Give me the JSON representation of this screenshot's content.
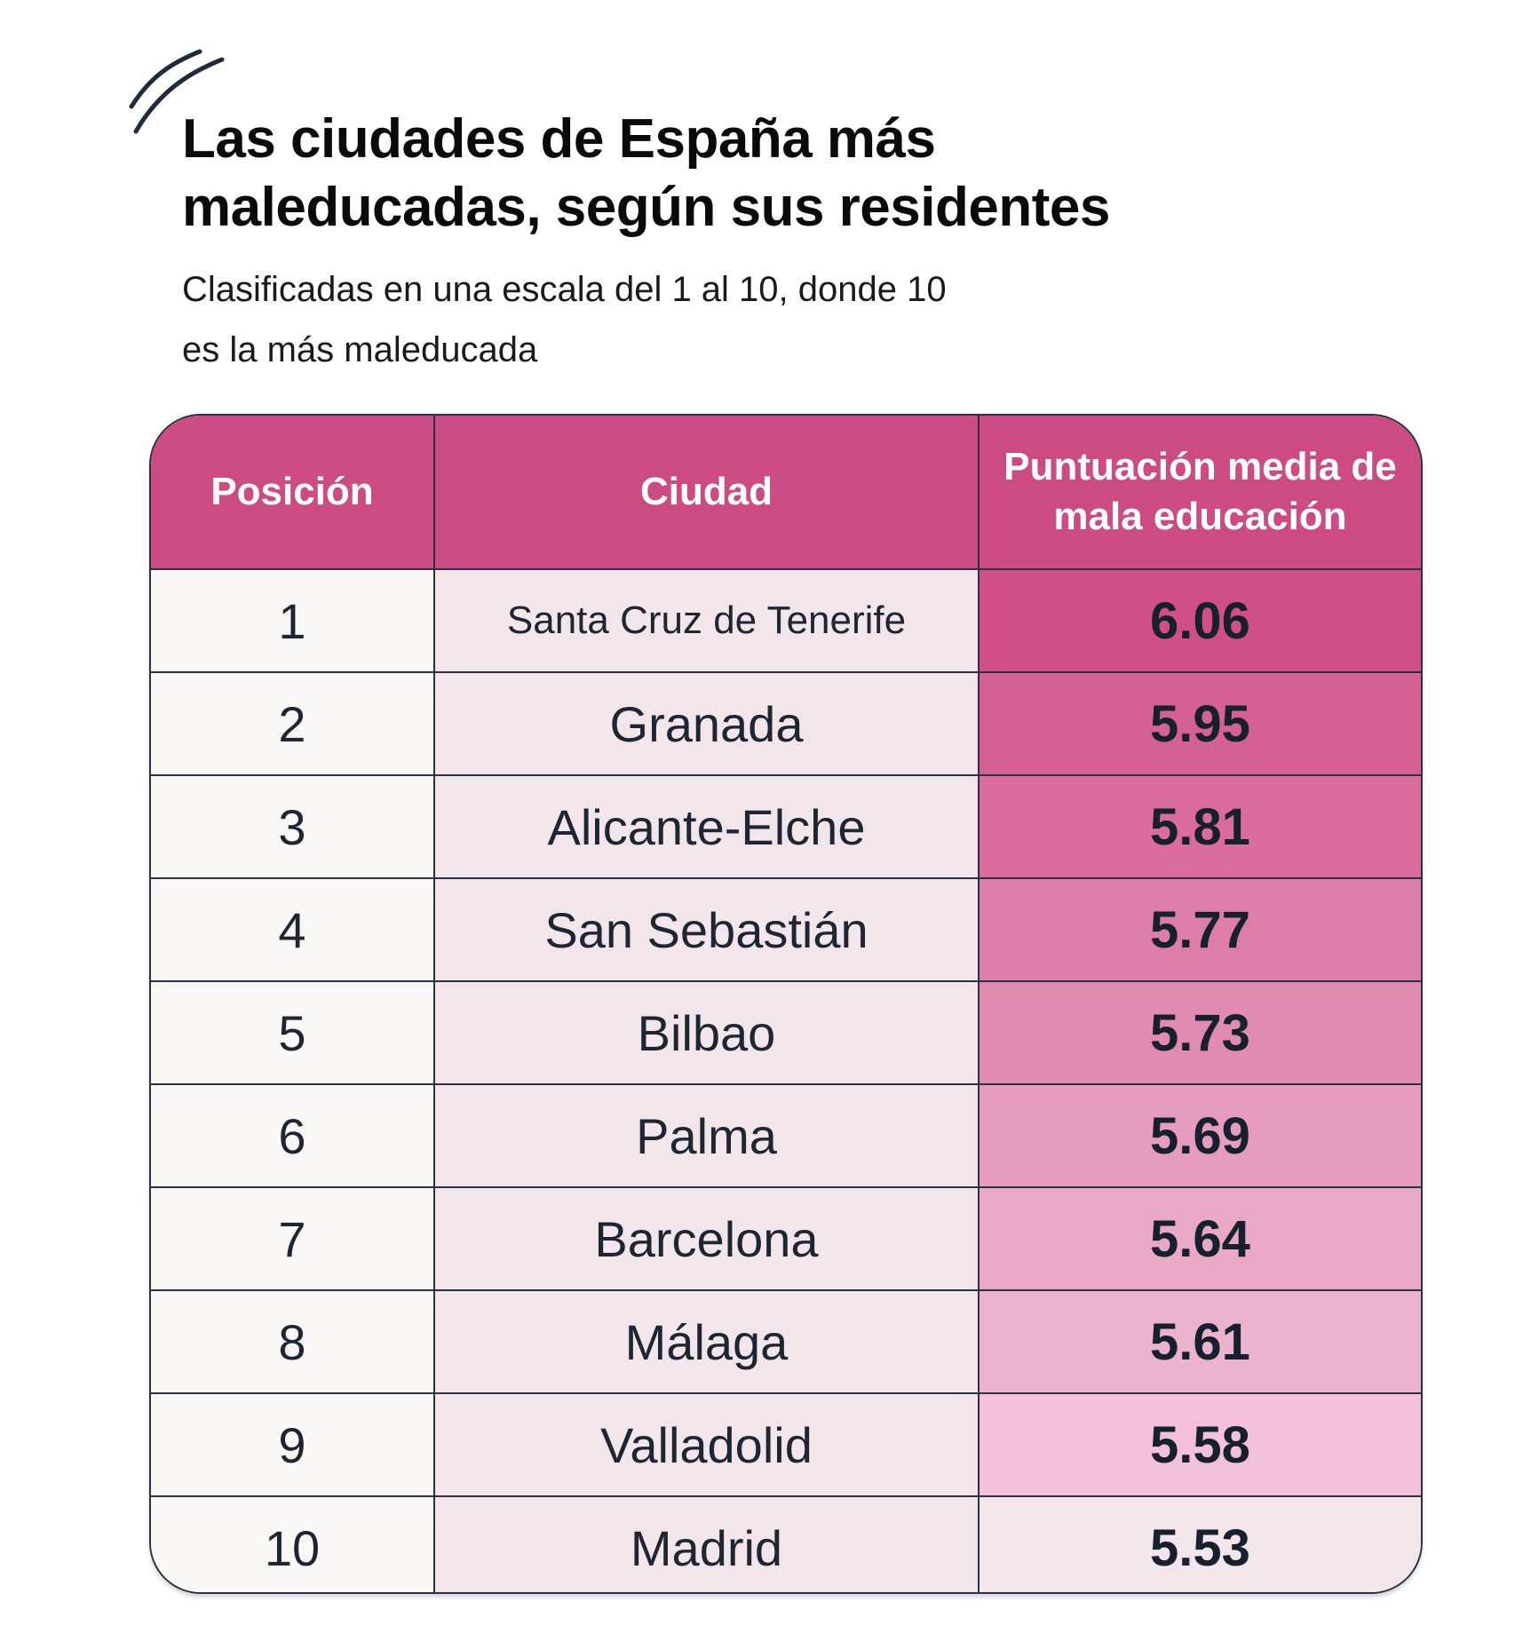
{
  "header": {
    "title_line1": "Las ciudades de España más",
    "title_line2": "maleducadas, según sus residentes",
    "subtitle_line1": "Clasificadas en una escala del 1 al 10, donde 10",
    "subtitle_line2": "es la más maleducada",
    "decoration_icon": "double-curved-lines-icon"
  },
  "table": {
    "columns": [
      "Posición",
      "Ciudad",
      "Puntuación media de mala educación"
    ],
    "rows": [
      {
        "position": "1",
        "city": "Santa Cruz de Tenerife",
        "score": "6.06",
        "color": "#d04f88"
      },
      {
        "position": "2",
        "city": "Granada",
        "score": "5.95",
        "color": "#d46194"
      },
      {
        "position": "3",
        "city": "Alicante-Elche",
        "score": "5.81",
        "color": "#d96c9c"
      },
      {
        "position": "4",
        "city": "San Sebastián",
        "score": "5.77",
        "color": "#dd7ea8"
      },
      {
        "position": "5",
        "city": "Bilbao",
        "score": "5.73",
        "color": "#e18caf"
      },
      {
        "position": "6",
        "city": "Palma",
        "score": "5.69",
        "color": "#e69cbd"
      },
      {
        "position": "7",
        "city": "Barcelona",
        "score": "5.64",
        "color": "#e9a8c4"
      },
      {
        "position": "8",
        "city": "Málaga",
        "score": "5.61",
        "color": "#ecb3cd"
      },
      {
        "position": "9",
        "city": "Valladolid",
        "score": "5.58",
        "color": "#f3c1da"
      },
      {
        "position": "10",
        "city": "Madrid",
        "score": "5.53",
        "color": "#f3e6eb"
      }
    ]
  },
  "colors": {
    "header_bg": "#cc4b83",
    "header_text": "#ffffff",
    "border": "#2a3142",
    "city_bg": "#f3e6eb",
    "position_bg": "#faf8f7"
  },
  "chart_data": {
    "type": "table",
    "title": "Las ciudades de España más maleducadas, según sus residentes",
    "subtitle": "Clasificadas en una escala del 1 al 10, donde 10 es la más maleducada",
    "columns": [
      "Posición",
      "Ciudad",
      "Puntuación media de mala educación"
    ],
    "categories": [
      "Santa Cruz de Tenerife",
      "Granada",
      "Alicante-Elche",
      "San Sebastián",
      "Bilbao",
      "Palma",
      "Barcelona",
      "Málaga",
      "Valladolid",
      "Madrid"
    ],
    "positions": [
      1,
      2,
      3,
      4,
      5,
      6,
      7,
      8,
      9,
      10
    ],
    "values": [
      6.06,
      5.95,
      5.81,
      5.77,
      5.73,
      5.69,
      5.64,
      5.61,
      5.58,
      5.53
    ],
    "scale": [
      1,
      10
    ]
  }
}
